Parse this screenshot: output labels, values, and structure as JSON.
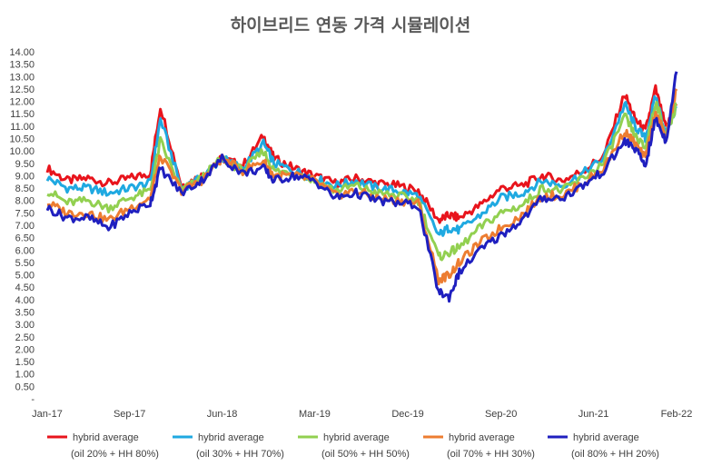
{
  "chart_data": {
    "type": "line",
    "title": "하이브리드 연동 가격 시뮬레이션",
    "xlabel": "",
    "ylabel": "",
    "ylim": [
      0,
      14
    ],
    "y_ticks": [
      "-",
      "0.50",
      "1.00",
      "1.50",
      "2.00",
      "2.50",
      "3.00",
      "3.50",
      "4.00",
      "4.50",
      "5.00",
      "5.50",
      "6.00",
      "6.50",
      "7.00",
      "7.50",
      "8.00",
      "8.50",
      "9.00",
      "9.50",
      "10.00",
      "10.50",
      "11.00",
      "11.50",
      "12.00",
      "12.50",
      "13.00",
      "13.50",
      "14.00"
    ],
    "x_ticks": [
      "Jan-17",
      "Sep-17",
      "Jun-18",
      "Mar-19",
      "Dec-19",
      "Sep-20",
      "Jun-21",
      "Feb-22"
    ],
    "x": [
      "2017-01",
      "2017-03",
      "2017-05",
      "2017-07",
      "2017-09",
      "2017-11",
      "2017-12",
      "2018-02",
      "2018-04",
      "2018-06",
      "2018-08",
      "2018-10",
      "2018-11",
      "2019-01",
      "2019-03",
      "2019-05",
      "2019-07",
      "2019-09",
      "2019-11",
      "2020-01",
      "2020-03",
      "2020-04",
      "2020-05",
      "2020-07",
      "2020-09",
      "2020-11",
      "2021-01",
      "2021-03",
      "2021-05",
      "2021-07",
      "2021-09",
      "2021-10",
      "2021-11",
      "2021-12",
      "2022-01",
      "2022-02"
    ],
    "legend_position": "bottom",
    "series": [
      {
        "name": "hybrid average",
        "label2": "(oil 20% + HH 80%)",
        "color": "#e8141c",
        "values": [
          9.3,
          8.8,
          8.9,
          8.7,
          8.9,
          9.1,
          11.8,
          8.6,
          9.0,
          9.7,
          9.4,
          10.6,
          9.7,
          9.3,
          9.0,
          8.7,
          8.9,
          8.7,
          8.6,
          8.4,
          7.2,
          7.4,
          7.3,
          7.8,
          8.5,
          8.6,
          9.0,
          8.8,
          9.2,
          9.8,
          12.3,
          11.3,
          10.8,
          12.5,
          10.9,
          11.9
        ]
      },
      {
        "name": "hybrid average",
        "label2": "(oil 30% + HH 70%)",
        "color": "#1fa9e1",
        "values": [
          8.9,
          8.5,
          8.5,
          8.3,
          8.5,
          8.7,
          11.3,
          8.5,
          8.9,
          9.7,
          9.3,
          10.3,
          9.5,
          9.2,
          8.9,
          8.6,
          8.8,
          8.5,
          8.4,
          8.2,
          6.6,
          6.9,
          6.8,
          7.4,
          8.1,
          8.3,
          8.8,
          8.6,
          9.1,
          9.7,
          11.9,
          11.0,
          10.5,
          12.2,
          10.7,
          11.8
        ]
      },
      {
        "name": "hybrid average",
        "label2": "(oil 50% + HH 50%)",
        "color": "#92d050",
        "values": [
          8.4,
          7.9,
          8.0,
          7.7,
          8.1,
          8.4,
          10.4,
          8.4,
          8.9,
          9.7,
          9.2,
          10.0,
          9.2,
          9.1,
          8.8,
          8.4,
          8.6,
          8.3,
          8.2,
          8.0,
          5.7,
          5.9,
          6.1,
          6.9,
          7.5,
          7.8,
          8.5,
          8.4,
          8.9,
          9.5,
          11.4,
          10.6,
          10.1,
          12.0,
          10.6,
          11.9
        ]
      },
      {
        "name": "hybrid average",
        "label2": "(oil 70% + HH 30%)",
        "color": "#ed7d31",
        "values": [
          7.9,
          7.5,
          7.5,
          7.2,
          7.7,
          8.1,
          9.8,
          8.4,
          8.8,
          9.7,
          9.2,
          9.6,
          9.0,
          9.0,
          8.8,
          8.2,
          8.4,
          8.1,
          8.0,
          7.9,
          4.8,
          5.0,
          5.5,
          6.3,
          6.9,
          7.4,
          8.2,
          8.2,
          8.7,
          9.3,
          10.8,
          10.3,
          9.7,
          11.6,
          10.5,
          12.5
        ]
      },
      {
        "name": "hybrid average",
        "label2": "(oil 80% + HH 20%)",
        "color": "#1f1fbf",
        "values": [
          7.7,
          7.3,
          7.3,
          6.9,
          7.5,
          7.9,
          9.3,
          8.3,
          8.8,
          9.7,
          9.1,
          9.3,
          8.8,
          9.0,
          8.8,
          8.1,
          8.3,
          8.0,
          7.9,
          7.8,
          4.3,
          4.1,
          5.1,
          6.0,
          6.6,
          7.2,
          8.1,
          8.1,
          8.6,
          9.2,
          10.4,
          10.1,
          9.4,
          11.3,
          10.4,
          13.2
        ]
      }
    ]
  }
}
